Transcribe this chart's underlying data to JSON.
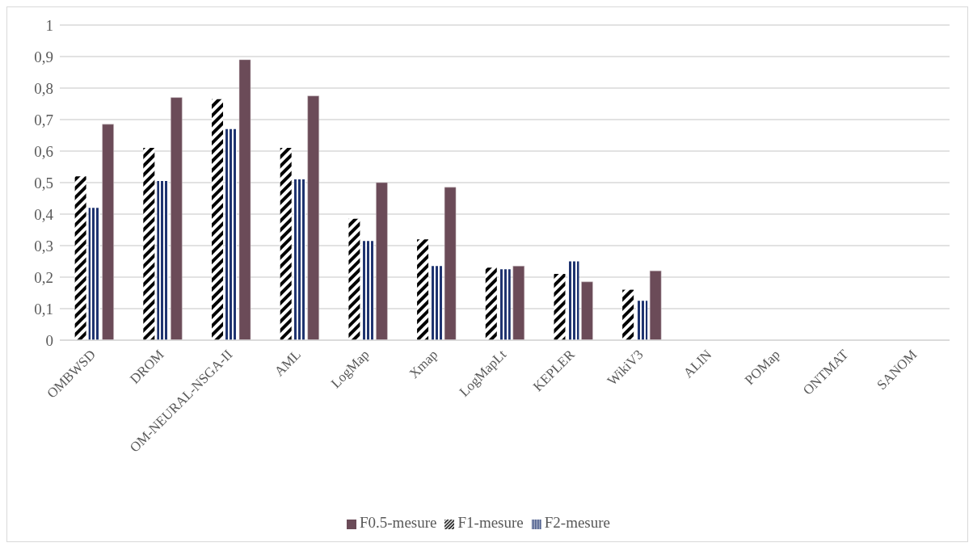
{
  "chart_data": {
    "type": "bar",
    "categories": [
      "OMBWSD",
      "DROM",
      "OM-NEURAL-NSGA-II",
      "AML",
      "LogMap",
      "Xmap",
      "LogMapLt",
      "KEPLER",
      "WikiV3",
      "ALIN",
      "POMap",
      "ONTMAT",
      "SANOM"
    ],
    "series": [
      {
        "name": "F1-mesure",
        "color": "#000000",
        "values": [
          0.52,
          0.61,
          0.765,
          0.61,
          0.385,
          0.32,
          0.23,
          0.21,
          0.16,
          null,
          null,
          null,
          null
        ]
      },
      {
        "name": "F2-mesure",
        "color": "#1f3470",
        "values": [
          0.42,
          0.505,
          0.67,
          0.51,
          0.315,
          0.235,
          0.225,
          0.25,
          0.125,
          null,
          null,
          null,
          null
        ]
      },
      {
        "name": "F0.5-mesure",
        "color": "#6b4b58",
        "values": [
          0.685,
          0.77,
          0.89,
          0.775,
          0.5,
          0.485,
          0.235,
          0.185,
          0.22,
          null,
          null,
          null,
          null
        ]
      }
    ],
    "ylim": [
      0,
      1
    ],
    "yticks": [
      0,
      {
        "value": 0.1,
        "label": "0,1"
      },
      {
        "value": 0.2,
        "label": "0,2"
      },
      {
        "value": 0.3,
        "label": "0,3"
      },
      {
        "value": 0.4,
        "label": "0,4"
      },
      {
        "value": 0.5,
        "label": "0,5"
      },
      {
        "value": 0.6,
        "label": "0,6"
      },
      {
        "value": 0.7,
        "label": "0,7"
      },
      {
        "value": 0.8,
        "label": "0,8"
      },
      {
        "value": 0.9,
        "label": "0,9"
      },
      1
    ],
    "grid": "y",
    "legend": "bottom"
  }
}
